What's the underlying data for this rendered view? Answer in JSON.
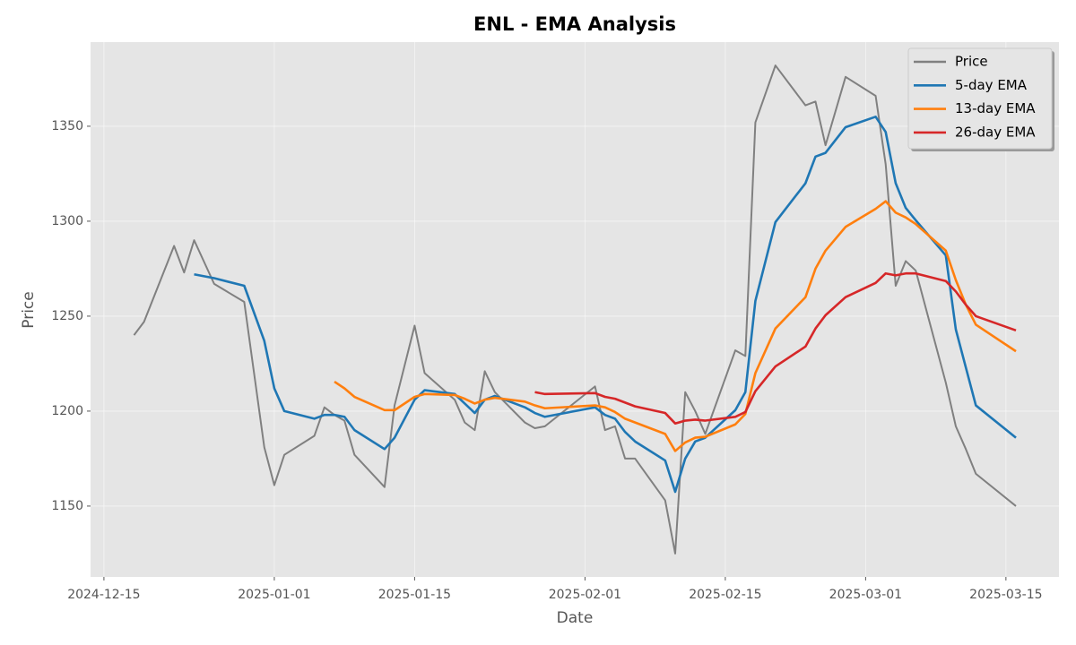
{
  "chart_data": {
    "type": "line",
    "title": "ENL - EMA Analysis",
    "x_label": "Date",
    "y_label": "Price",
    "x": [
      "2024-12-18",
      "2024-12-19",
      "2024-12-22",
      "2024-12-23",
      "2024-12-24",
      "2024-12-26",
      "2024-12-29",
      "2024-12-31",
      "2025-01-01",
      "2025-01-02",
      "2025-01-05",
      "2025-01-06",
      "2025-01-07",
      "2025-01-08",
      "2025-01-09",
      "2025-01-12",
      "2025-01-13",
      "2025-01-15",
      "2025-01-16",
      "2025-01-19",
      "2025-01-20",
      "2025-01-21",
      "2025-01-22",
      "2025-01-23",
      "2025-01-26",
      "2025-01-27",
      "2025-01-28",
      "2025-02-02",
      "2025-02-03",
      "2025-02-04",
      "2025-02-05",
      "2025-02-06",
      "2025-02-09",
      "2025-02-10",
      "2025-02-11",
      "2025-02-12",
      "2025-02-13",
      "2025-02-16",
      "2025-02-17",
      "2025-02-18",
      "2025-02-20",
      "2025-02-23",
      "2025-02-24",
      "2025-02-25",
      "2025-02-27",
      "2025-03-02",
      "2025-03-03",
      "2025-03-04",
      "2025-03-05",
      "2025-03-06",
      "2025-03-09",
      "2025-03-10",
      "2025-03-11",
      "2025-03-12",
      "2025-03-16"
    ],
    "series": [
      {
        "name": "Price",
        "color": "#808080",
        "values": [
          1240,
          1247,
          1287,
          1273,
          1290,
          1267,
          1257.5,
          1181,
          1161,
          1177,
          1187,
          1202,
          1198,
          1195,
          1177,
          1160,
          1203,
          1245,
          1220,
          1206,
          1194,
          1190,
          1221,
          1210,
          1194,
          1191,
          1192,
          1213,
          1190,
          1192,
          1175,
          1175,
          1153,
          1125,
          1210,
          1200,
          1188,
          1232,
          1229,
          1352,
          1382,
          1361,
          1363,
          1340,
          1376,
          1366,
          1330,
          1266,
          1279,
          1274,
          1215,
          1192,
          1180,
          1167,
          1150
        ]
      },
      {
        "name": "5-day EMA",
        "color": "#1f77b4",
        "values": [
          null,
          null,
          null,
          null,
          1272,
          1270,
          1266,
          1237,
          1212,
          1200,
          1196,
          1198,
          1198,
          1197,
          1190,
          1180,
          1186,
          1206,
          1211,
          1209,
          1204,
          1199,
          1206,
          1208,
          1202,
          1199,
          1197,
          1202,
          1198,
          1196,
          1189,
          1184,
          1174,
          1157.5,
          1175,
          1184,
          1186,
          1200.5,
          1210,
          1258,
          1299.5,
          1320,
          1334,
          1336,
          1349.5,
          1355,
          1347,
          1320,
          1307,
          1300.5,
          1282,
          1243,
          1223,
          1203,
          1186
        ]
      },
      {
        "name": "13-day EMA",
        "color": "#ff7f0e",
        "values": [
          null,
          null,
          null,
          null,
          null,
          null,
          null,
          null,
          null,
          null,
          null,
          null,
          1215.5,
          1212,
          1207.5,
          1200.5,
          1200.5,
          1207.5,
          1209,
          1208.5,
          1206.5,
          1204,
          1206,
          1207,
          1205,
          1203,
          1201.5,
          1203,
          1202,
          1199.5,
          1196,
          1194,
          1188,
          1179,
          1183.5,
          1186,
          1186.5,
          1193,
          1198.5,
          1220,
          1243.5,
          1260,
          1275,
          1284.5,
          1297,
          1306.5,
          1310.5,
          1304.5,
          1302,
          1298.5,
          1284.5,
          1269,
          1256,
          1245.5,
          1231.5
        ]
      },
      {
        "name": "26-day EMA",
        "color": "#d62728",
        "values": [
          null,
          null,
          null,
          null,
          null,
          null,
          null,
          null,
          null,
          null,
          null,
          null,
          null,
          null,
          null,
          null,
          null,
          null,
          null,
          null,
          null,
          null,
          null,
          null,
          null,
          1210,
          1209,
          1209.5,
          1207.5,
          1206.5,
          1204.5,
          1202.5,
          1199,
          1193.5,
          1195,
          1195.5,
          1195,
          1197,
          1199.5,
          1210.5,
          1223.5,
          1234,
          1243.5,
          1250.5,
          1260,
          1267.5,
          1272.5,
          1271.5,
          1272.5,
          1272.5,
          1268.5,
          1263,
          1256,
          1250,
          1242.5
        ]
      }
    ],
    "xlim": [
      "2024-12-13T16:00:00Z",
      "2025-03-20T07:00:00Z"
    ],
    "xticks": [
      "2024-12-15",
      "2025-01-01",
      "2025-01-15",
      "2025-02-01",
      "2025-02-15",
      "2025-03-01",
      "2025-03-15"
    ],
    "ylim": [
      1112.7,
      1394.3
    ],
    "yticks": [
      1150,
      1200,
      1250,
      1300,
      1350
    ],
    "grid": true,
    "legend": "upper right"
  }
}
